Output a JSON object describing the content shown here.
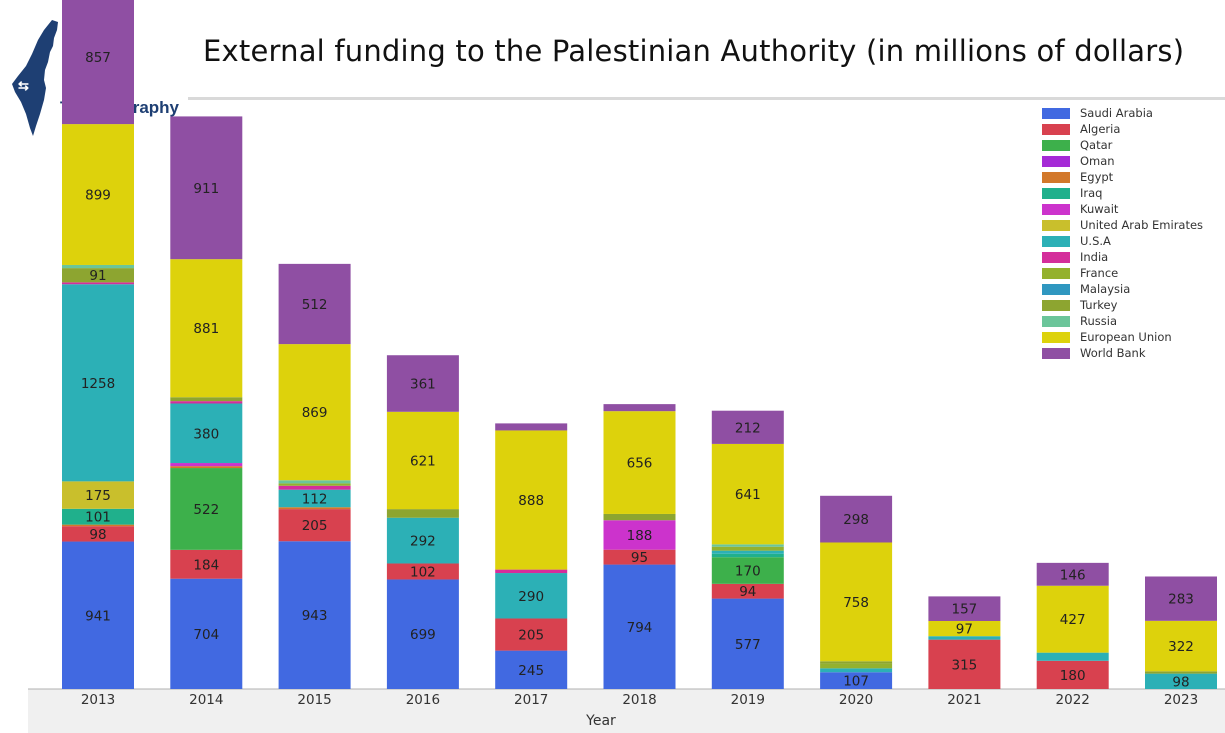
{
  "header": {
    "title": "External funding to the Palestinian Authority (in millions of dollars)",
    "logo_text": "T-Politography"
  },
  "chart_data": {
    "type": "bar",
    "stacked": true,
    "title": "External funding to the Palestinian Authority (in millions of dollars)",
    "xlabel": "Year",
    "ylabel": "",
    "categories": [
      "2013",
      "2014",
      "2015",
      "2016",
      "2017",
      "2018",
      "2019",
      "2020",
      "2021",
      "2022",
      "2023"
    ],
    "legend_position": "top-right",
    "grid": false,
    "series": [
      {
        "name": "Saudi Arabia",
        "color": "#4169e1",
        "values": [
          941,
          704,
          943,
          699,
          245,
          794,
          577,
          107,
          0,
          0,
          0
        ],
        "labels": [
          true,
          true,
          true,
          true,
          true,
          true,
          true,
          true,
          false,
          false,
          false
        ]
      },
      {
        "name": "Algeria",
        "color": "#d8414f",
        "values": [
          98,
          184,
          205,
          102,
          205,
          95,
          94,
          0,
          315,
          180,
          0
        ],
        "labels": [
          true,
          true,
          true,
          true,
          true,
          true,
          true,
          false,
          true,
          true,
          false
        ]
      },
      {
        "name": "Qatar",
        "color": "#3db04b",
        "values": [
          0,
          522,
          0,
          0,
          0,
          0,
          170,
          0,
          0,
          0,
          0
        ],
        "labels": [
          false,
          true,
          false,
          false,
          false,
          false,
          true,
          false,
          false,
          false,
          false
        ]
      },
      {
        "name": "Oman",
        "color": "#a52bd6",
        "values": [
          0,
          0,
          0,
          0,
          0,
          0,
          0,
          0,
          0,
          0,
          0
        ],
        "labels": [
          false,
          false,
          false,
          false,
          false,
          false,
          false,
          false,
          false,
          false,
          false
        ]
      },
      {
        "name": "Egypt",
        "color": "#d2782a",
        "values": [
          10,
          12,
          12,
          0,
          0,
          0,
          0,
          0,
          0,
          0,
          0
        ],
        "labels": [
          false,
          false,
          false,
          false,
          false,
          false,
          false,
          false,
          false,
          false,
          false
        ]
      },
      {
        "name": "Iraq",
        "color": "#20b08c",
        "values": [
          101,
          0,
          0,
          0,
          0,
          0,
          22,
          0,
          0,
          0,
          0
        ],
        "labels": [
          true,
          false,
          false,
          false,
          false,
          false,
          false,
          false,
          false,
          false,
          false
        ]
      },
      {
        "name": "Kuwait",
        "color": "#cc33cc",
        "values": [
          0,
          20,
          0,
          0,
          0,
          188,
          0,
          0,
          0,
          0,
          0
        ],
        "labels": [
          false,
          false,
          false,
          false,
          false,
          true,
          false,
          false,
          false,
          false,
          false
        ]
      },
      {
        "name": "United Arab Emirates",
        "color": "#c9bf2c",
        "values": [
          175,
          0,
          0,
          0,
          0,
          0,
          0,
          0,
          0,
          0,
          0
        ],
        "labels": [
          true,
          false,
          false,
          false,
          false,
          false,
          false,
          false,
          false,
          false,
          false
        ]
      },
      {
        "name": "U.S.A",
        "color": "#2cb0b6",
        "values": [
          1258,
          380,
          112,
          292,
          290,
          0,
          20,
          25,
          22,
          52,
          98
        ],
        "labels": [
          true,
          true,
          true,
          true,
          true,
          false,
          false,
          false,
          false,
          false,
          true
        ]
      },
      {
        "name": "India",
        "color": "#d42e9b",
        "values": [
          12,
          15,
          25,
          0,
          22,
          0,
          0,
          0,
          0,
          0,
          0
        ],
        "labels": [
          false,
          false,
          false,
          false,
          false,
          false,
          false,
          false,
          false,
          false,
          false
        ]
      },
      {
        "name": "France",
        "color": "#94b12e",
        "values": [
          0,
          0,
          15,
          0,
          0,
          0,
          25,
          30,
          0,
          0,
          0
        ],
        "labels": [
          false,
          false,
          false,
          false,
          false,
          false,
          false,
          false,
          false,
          false,
          false
        ]
      },
      {
        "name": "Malaysia",
        "color": "#2f97c0",
        "values": [
          0,
          0,
          0,
          0,
          0,
          0,
          0,
          0,
          0,
          0,
          0
        ],
        "labels": [
          false,
          false,
          false,
          false,
          false,
          false,
          false,
          false,
          false,
          false,
          false
        ]
      },
      {
        "name": "Turkey",
        "color": "#8da530",
        "values": [
          91,
          25,
          0,
          55,
          0,
          40,
          0,
          15,
          0,
          0,
          15
        ],
        "labels": [
          true,
          false,
          false,
          false,
          false,
          false,
          false,
          false,
          false,
          false,
          false
        ]
      },
      {
        "name": "Russia",
        "color": "#6bc59a",
        "values": [
          20,
          0,
          20,
          0,
          0,
          0,
          15,
          0,
          0,
          0,
          0
        ],
        "labels": [
          false,
          false,
          false,
          false,
          false,
          false,
          false,
          false,
          false,
          false,
          false
        ]
      },
      {
        "name": "European Union",
        "color": "#ddd20c",
        "values": [
          899,
          881,
          869,
          621,
          888,
          656,
          641,
          758,
          97,
          427,
          322
        ],
        "labels": [
          true,
          true,
          true,
          true,
          true,
          true,
          true,
          true,
          true,
          true,
          true
        ]
      },
      {
        "name": "World Bank",
        "color": "#8f4fa3",
        "values": [
          857,
          911,
          512,
          361,
          45,
          45,
          212,
          298,
          157,
          146,
          283
        ],
        "labels": [
          true,
          true,
          true,
          true,
          false,
          false,
          true,
          true,
          true,
          true,
          true
        ]
      }
    ]
  }
}
